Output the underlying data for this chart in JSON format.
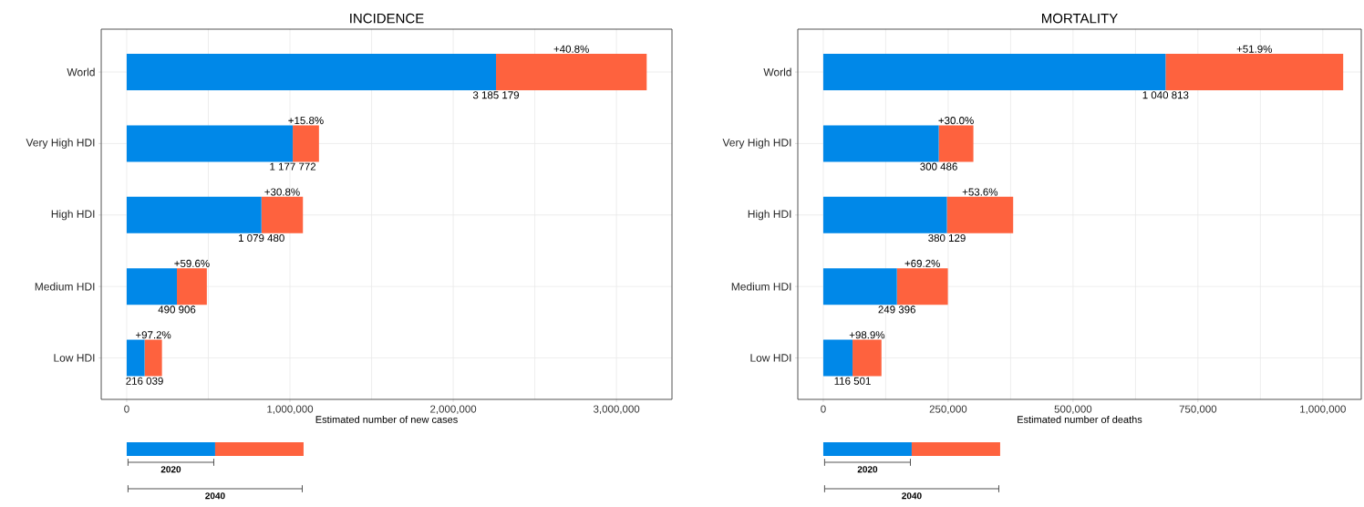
{
  "chart_data": [
    {
      "type": "bar",
      "orientation": "horizontal",
      "stacked": true,
      "title": "INCIDENCE",
      "xlabel": "Estimated number of new cases",
      "categories": [
        "World",
        "Very High HDI",
        "High HDI",
        "Medium HDI",
        "Low HDI"
      ],
      "series": [
        {
          "name": "2020",
          "color": "#0088e8",
          "values": [
            2262201,
            1017074,
            825291,
            307585,
            109553
          ]
        },
        {
          "name": "2040",
          "color": "#fe623e",
          "values": [
            922978,
            160698,
            254189,
            183321,
            106486
          ]
        }
      ],
      "totals": [
        "3 185 179",
        "1 177 772",
        "1 079 480",
        "490 906",
        "216 039"
      ],
      "annotations": [
        "+40.8%",
        "+15.8%",
        "+30.8%",
        "+59.6%",
        "+97.2%"
      ],
      "xlim": [
        -156000,
        3340000
      ],
      "xticks": [
        0,
        {
          "value": 1000000,
          "label": "1,000,000"
        },
        {
          "value": 2000000,
          "label": "2,000,000"
        },
        {
          "value": 3000000,
          "label": "3,000,000"
        }
      ],
      "grid": true,
      "legend": "bottom"
    },
    {
      "type": "bar",
      "orientation": "horizontal",
      "stacked": true,
      "title": "MORTALITY",
      "xlabel": "Estimated number of deaths",
      "categories": [
        "World",
        "Very High HDI",
        "High HDI",
        "Medium HDI",
        "Low HDI"
      ],
      "series": [
        {
          "name": "2020",
          "color": "#0088e8",
          "values": [
            685196,
            231143,
            247480,
            147397,
            58573
          ]
        },
        {
          "name": "2040",
          "color": "#fe623e",
          "values": [
            355617,
            69343,
            132649,
            101999,
            57928
          ]
        }
      ],
      "totals": [
        "1 040 813",
        "300 486",
        "380 129",
        "249 396",
        "116 501"
      ],
      "annotations": [
        "+51.9%",
        "+30.0%",
        "+53.6%",
        "+69.2%",
        "+98.9%"
      ],
      "xlim": [
        -51000,
        1077000
      ],
      "xticks": [
        0,
        {
          "value": 250000,
          "label": "250,000"
        },
        {
          "value": 500000,
          "label": "500,000"
        },
        {
          "value": 750000,
          "label": "750,000"
        },
        {
          "value": 1000000,
          "label": "1,000,000"
        }
      ],
      "grid": true,
      "legend": "bottom"
    }
  ]
}
